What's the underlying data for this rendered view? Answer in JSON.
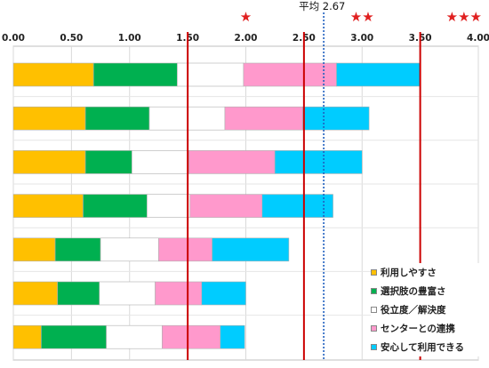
{
  "chart_data": {
    "type": "bar",
    "orientation": "horizontal",
    "stacked": true,
    "xlim": [
      0,
      4
    ],
    "ticks": [
      "0.00",
      "0.50",
      "1.00",
      "1.50",
      "2.00",
      "2.50",
      "3.00",
      "3.50",
      "4.00"
    ],
    "categories": [
      "",
      "",
      "",
      "",
      "",
      "",
      ""
    ],
    "series": [
      {
        "name": "利用しやすさ",
        "color": "#ffc000",
        "values": [
          0.69,
          0.62,
          0.62,
          0.6,
          0.36,
          0.38,
          0.24
        ]
      },
      {
        "name": "選択肢の豊富さ",
        "color": "#00b050",
        "values": [
          0.72,
          0.55,
          0.4,
          0.55,
          0.39,
          0.36,
          0.56
        ]
      },
      {
        "name": "役立度／解決度",
        "color": "#ffffff",
        "values": [
          0.57,
          0.65,
          0.49,
          0.37,
          0.5,
          0.48,
          0.48
        ]
      },
      {
        "name": "センターとの連携",
        "color": "#ff99cc",
        "values": [
          0.8,
          0.67,
          0.74,
          0.62,
          0.46,
          0.4,
          0.5
        ]
      },
      {
        "name": "安心して利用できる",
        "color": "#00ccff",
        "values": [
          0.72,
          0.57,
          0.75,
          0.61,
          0.66,
          0.38,
          0.21
        ]
      }
    ],
    "reference_lines": [
      {
        "value": 1.5,
        "style": "solid",
        "color": "#cc0000"
      },
      {
        "value": 2.5,
        "style": "solid",
        "color": "#cc0000"
      },
      {
        "value": 3.5,
        "style": "solid",
        "color": "#cc0000"
      },
      {
        "value": 2.67,
        "style": "dotted",
        "color": "#1f5fbf",
        "label": "平均 2.67"
      }
    ],
    "star_markers": [
      {
        "value": 2.0,
        "text": "★"
      },
      {
        "value": 3.0,
        "text": "★★"
      },
      {
        "value": 4.0,
        "text": "★★★"
      }
    ],
    "grid": true,
    "legend": "bottom-right"
  }
}
